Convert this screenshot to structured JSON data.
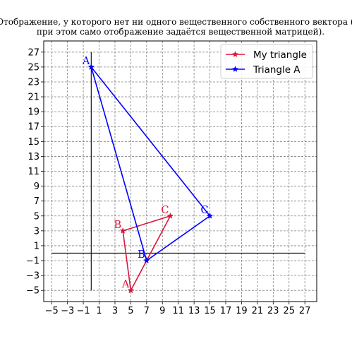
{
  "title": {
    "line1": "Отображение, у которого нет ни одного вещественного собственного вектора (но",
    "line2": "при этом само отображение задаётся вещественной матрицей)."
  },
  "chart_data": {
    "type": "line",
    "xlim": [
      -6,
      28.5
    ],
    "ylim": [
      -6.5,
      28.5
    ],
    "xticks": [
      -5,
      -3,
      -1,
      1,
      3,
      5,
      7,
      9,
      11,
      13,
      15,
      17,
      19,
      21,
      23,
      25,
      27
    ],
    "yticks": [
      -5,
      -3,
      -1,
      1,
      3,
      5,
      7,
      9,
      11,
      13,
      15,
      17,
      19,
      21,
      23,
      25,
      27
    ],
    "grid": true,
    "legend_position": "top-right",
    "axes_lines": {
      "horizontal": {
        "y": 0,
        "x_from": -5,
        "x_to": 27
      },
      "vertical": {
        "x": 0,
        "y_from": -5,
        "y_to": 27
      }
    },
    "series": [
      {
        "name": "My triangle",
        "color": "#dc143c",
        "marker": "star",
        "points": [
          {
            "label": "A",
            "x": 5,
            "y": -5
          },
          {
            "label": "B",
            "x": 4,
            "y": 3
          },
          {
            "label": "C",
            "x": 10,
            "y": 5
          },
          {
            "label": "",
            "x": 5,
            "y": -5
          }
        ]
      },
      {
        "name": "Triangle A",
        "color": "#0000ff",
        "marker": "star",
        "points": [
          {
            "label": "A",
            "x": 0,
            "y": 25
          },
          {
            "label": "B",
            "x": 7,
            "y": -1
          },
          {
            "label": "C",
            "x": 15,
            "y": 5
          },
          {
            "label": "",
            "x": 0,
            "y": 25
          }
        ]
      }
    ]
  }
}
